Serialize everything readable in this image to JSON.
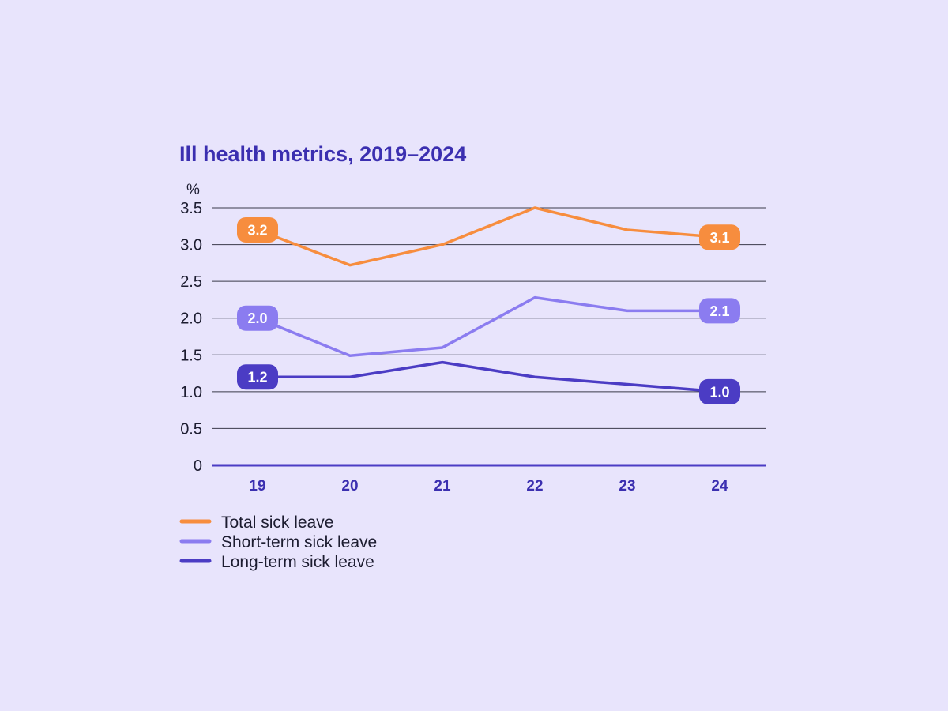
{
  "chart_data": {
    "type": "line",
    "title": "Ill health metrics, 2019–2024",
    "ylabel": "%",
    "xlabel": "",
    "categories": [
      "19",
      "20",
      "21",
      "22",
      "23",
      "24"
    ],
    "ylim": [
      0,
      3.5
    ],
    "yticks": [
      {
        "value": 0,
        "label": "0"
      },
      {
        "value": 0.5,
        "label": "0.5"
      },
      {
        "value": 1.0,
        "label": "1.0"
      },
      {
        "value": 1.5,
        "label": "1.5"
      },
      {
        "value": 2.0,
        "label": "2.0"
      },
      {
        "value": 2.5,
        "label": "2.5"
      },
      {
        "value": 3.0,
        "label": "3.0"
      },
      {
        "value": 3.5,
        "label": "3.5"
      }
    ],
    "grid": true,
    "legend_position": "bottom-left",
    "series": [
      {
        "key": "total",
        "name": "Total sick leave",
        "color": "#f78d3e",
        "values": [
          3.2,
          2.72,
          3.0,
          3.5,
          3.2,
          3.1
        ],
        "labels": [
          {
            "index": 0,
            "text": "3.2"
          },
          {
            "index": 5,
            "text": "3.1"
          }
        ]
      },
      {
        "key": "short",
        "name": "Short-term sick leave",
        "color": "#8b7cf0",
        "values": [
          2.0,
          1.49,
          1.6,
          2.28,
          2.1,
          2.1
        ],
        "labels": [
          {
            "index": 0,
            "text": "2.0"
          },
          {
            "index": 5,
            "text": "2.1"
          }
        ]
      },
      {
        "key": "long",
        "name": "Long-term sick leave",
        "color": "#4b3cc4",
        "values": [
          1.2,
          1.2,
          1.4,
          1.2,
          1.1,
          1.0
        ],
        "labels": [
          {
            "index": 0,
            "text": "1.2"
          },
          {
            "index": 5,
            "text": "1.0"
          }
        ]
      }
    ]
  },
  "colors": {
    "background": "#e8e4fc",
    "title": "#3b2fb0",
    "axis": "#4b3cc4",
    "grid": "#3a3a4a",
    "tick_text": "#1c1c30",
    "xtick_text": "#3b2fb0"
  }
}
